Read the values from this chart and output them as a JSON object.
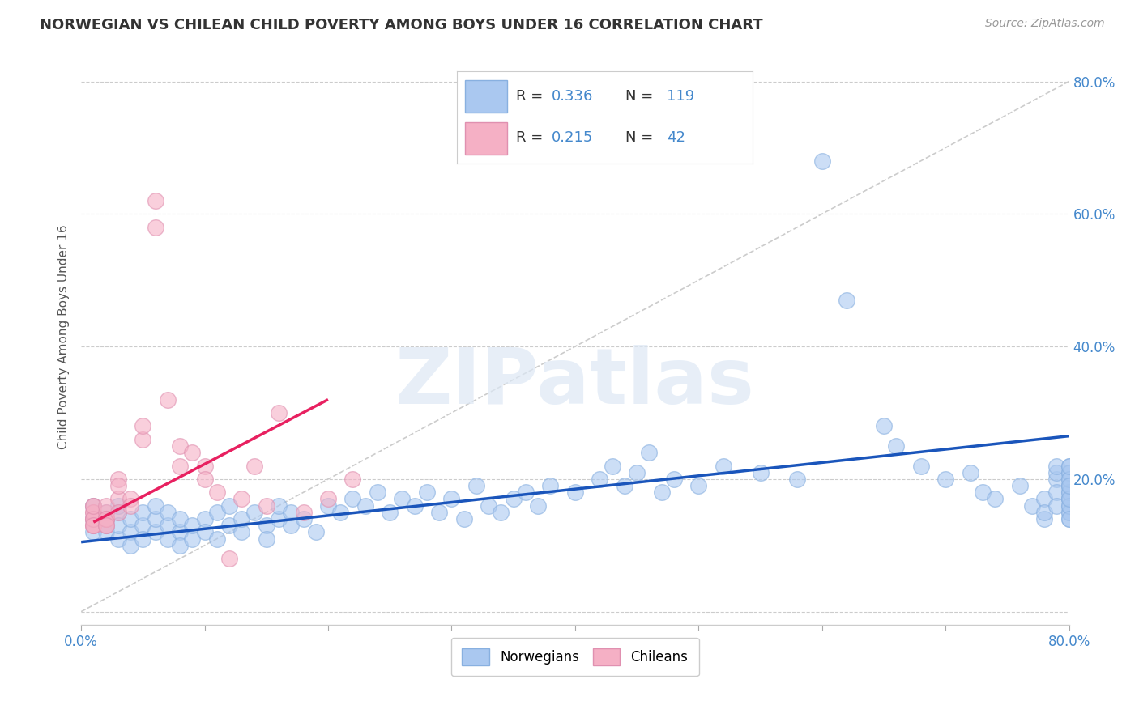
{
  "title": "NORWEGIAN VS CHILEAN CHILD POVERTY AMONG BOYS UNDER 16 CORRELATION CHART",
  "source": "Source: ZipAtlas.com",
  "ylabel": "Child Poverty Among Boys Under 16",
  "xlim": [
    0.0,
    0.8
  ],
  "ylim": [
    -0.02,
    0.85
  ],
  "watermark": "ZIPatlas",
  "norwegian_R": "0.336",
  "norwegian_N": "119",
  "chilean_R": "0.215",
  "chilean_N": "42",
  "norwegian_color": "#aac8f0",
  "chilean_color": "#f5b0c5",
  "norwegian_line_color": "#1a55bb",
  "chilean_line_color": "#e82060",
  "dashed_line_color": "#cccccc",
  "background_color": "#ffffff",
  "title_color": "#333333",
  "legend_label_norwegian": "Norwegians",
  "legend_label_chilean": "Chileans",
  "xticks": [
    0.0,
    0.1,
    0.2,
    0.3,
    0.4,
    0.5,
    0.6,
    0.7,
    0.8
  ],
  "xtick_labels": [
    "0.0%",
    "",
    "",
    "",
    "",
    "",
    "",
    "",
    "80.0%"
  ],
  "ytick_positions": [
    0.0,
    0.2,
    0.4,
    0.6,
    0.8
  ],
  "ytick_labels": [
    "",
    "20.0%",
    "40.0%",
    "60.0%",
    "80.0%"
  ],
  "norwegian_scatter_x": [
    0.01,
    0.01,
    0.01,
    0.02,
    0.02,
    0.02,
    0.02,
    0.03,
    0.03,
    0.03,
    0.03,
    0.04,
    0.04,
    0.04,
    0.05,
    0.05,
    0.05,
    0.06,
    0.06,
    0.06,
    0.07,
    0.07,
    0.07,
    0.08,
    0.08,
    0.08,
    0.09,
    0.09,
    0.1,
    0.1,
    0.11,
    0.11,
    0.12,
    0.12,
    0.13,
    0.13,
    0.14,
    0.15,
    0.15,
    0.16,
    0.16,
    0.17,
    0.17,
    0.18,
    0.19,
    0.2,
    0.21,
    0.22,
    0.23,
    0.24,
    0.25,
    0.26,
    0.27,
    0.28,
    0.29,
    0.3,
    0.31,
    0.32,
    0.33,
    0.34,
    0.35,
    0.36,
    0.37,
    0.38,
    0.4,
    0.42,
    0.43,
    0.44,
    0.45,
    0.46,
    0.47,
    0.48,
    0.5,
    0.52,
    0.55,
    0.58,
    0.6,
    0.62,
    0.65,
    0.66,
    0.68,
    0.7,
    0.72,
    0.73,
    0.74,
    0.76,
    0.77,
    0.78,
    0.78,
    0.78,
    0.79,
    0.79,
    0.79,
    0.79,
    0.79,
    0.8,
    0.8,
    0.8,
    0.8,
    0.8,
    0.8,
    0.8,
    0.8,
    0.8,
    0.8,
    0.8,
    0.8,
    0.8,
    0.8,
    0.8,
    0.8,
    0.8,
    0.8,
    0.8,
    0.8
  ],
  "norwegian_scatter_y": [
    0.14,
    0.16,
    0.12,
    0.13,
    0.15,
    0.12,
    0.14,
    0.11,
    0.15,
    0.13,
    0.16,
    0.12,
    0.14,
    0.1,
    0.13,
    0.15,
    0.11,
    0.12,
    0.14,
    0.16,
    0.11,
    0.13,
    0.15,
    0.12,
    0.1,
    0.14,
    0.11,
    0.13,
    0.14,
    0.12,
    0.15,
    0.11,
    0.13,
    0.16,
    0.12,
    0.14,
    0.15,
    0.13,
    0.11,
    0.14,
    0.16,
    0.13,
    0.15,
    0.14,
    0.12,
    0.16,
    0.15,
    0.17,
    0.16,
    0.18,
    0.15,
    0.17,
    0.16,
    0.18,
    0.15,
    0.17,
    0.14,
    0.19,
    0.16,
    0.15,
    0.17,
    0.18,
    0.16,
    0.19,
    0.18,
    0.2,
    0.22,
    0.19,
    0.21,
    0.24,
    0.18,
    0.2,
    0.19,
    0.22,
    0.21,
    0.2,
    0.68,
    0.47,
    0.28,
    0.25,
    0.22,
    0.2,
    0.21,
    0.18,
    0.17,
    0.19,
    0.16,
    0.14,
    0.17,
    0.15,
    0.2,
    0.18,
    0.21,
    0.16,
    0.22,
    0.17,
    0.19,
    0.15,
    0.21,
    0.18,
    0.16,
    0.2,
    0.17,
    0.14,
    0.22,
    0.19,
    0.15,
    0.21,
    0.18,
    0.16,
    0.2,
    0.17,
    0.14,
    0.22,
    0.19
  ],
  "chilean_scatter_x": [
    0.01,
    0.01,
    0.01,
    0.01,
    0.01,
    0.01,
    0.01,
    0.01,
    0.01,
    0.01,
    0.02,
    0.02,
    0.02,
    0.02,
    0.02,
    0.02,
    0.02,
    0.03,
    0.03,
    0.03,
    0.03,
    0.04,
    0.04,
    0.05,
    0.05,
    0.06,
    0.06,
    0.07,
    0.08,
    0.08,
    0.09,
    0.1,
    0.1,
    0.11,
    0.12,
    0.13,
    0.14,
    0.15,
    0.16,
    0.18,
    0.2,
    0.22
  ],
  "chilean_scatter_y": [
    0.14,
    0.13,
    0.15,
    0.16,
    0.14,
    0.13,
    0.15,
    0.14,
    0.16,
    0.13,
    0.14,
    0.15,
    0.13,
    0.14,
    0.16,
    0.14,
    0.13,
    0.2,
    0.17,
    0.15,
    0.19,
    0.17,
    0.16,
    0.26,
    0.28,
    0.58,
    0.62,
    0.32,
    0.22,
    0.25,
    0.24,
    0.22,
    0.2,
    0.18,
    0.08,
    0.17,
    0.22,
    0.16,
    0.3,
    0.15,
    0.17,
    0.2
  ],
  "norwegian_trend_x": [
    0.0,
    0.8
  ],
  "norwegian_trend_y": [
    0.105,
    0.265
  ],
  "chilean_trend_x": [
    0.01,
    0.2
  ],
  "chilean_trend_y": [
    0.135,
    0.32
  ],
  "diag_line_x": [
    0.0,
    0.8
  ],
  "diag_line_y": [
    0.0,
    0.8
  ]
}
